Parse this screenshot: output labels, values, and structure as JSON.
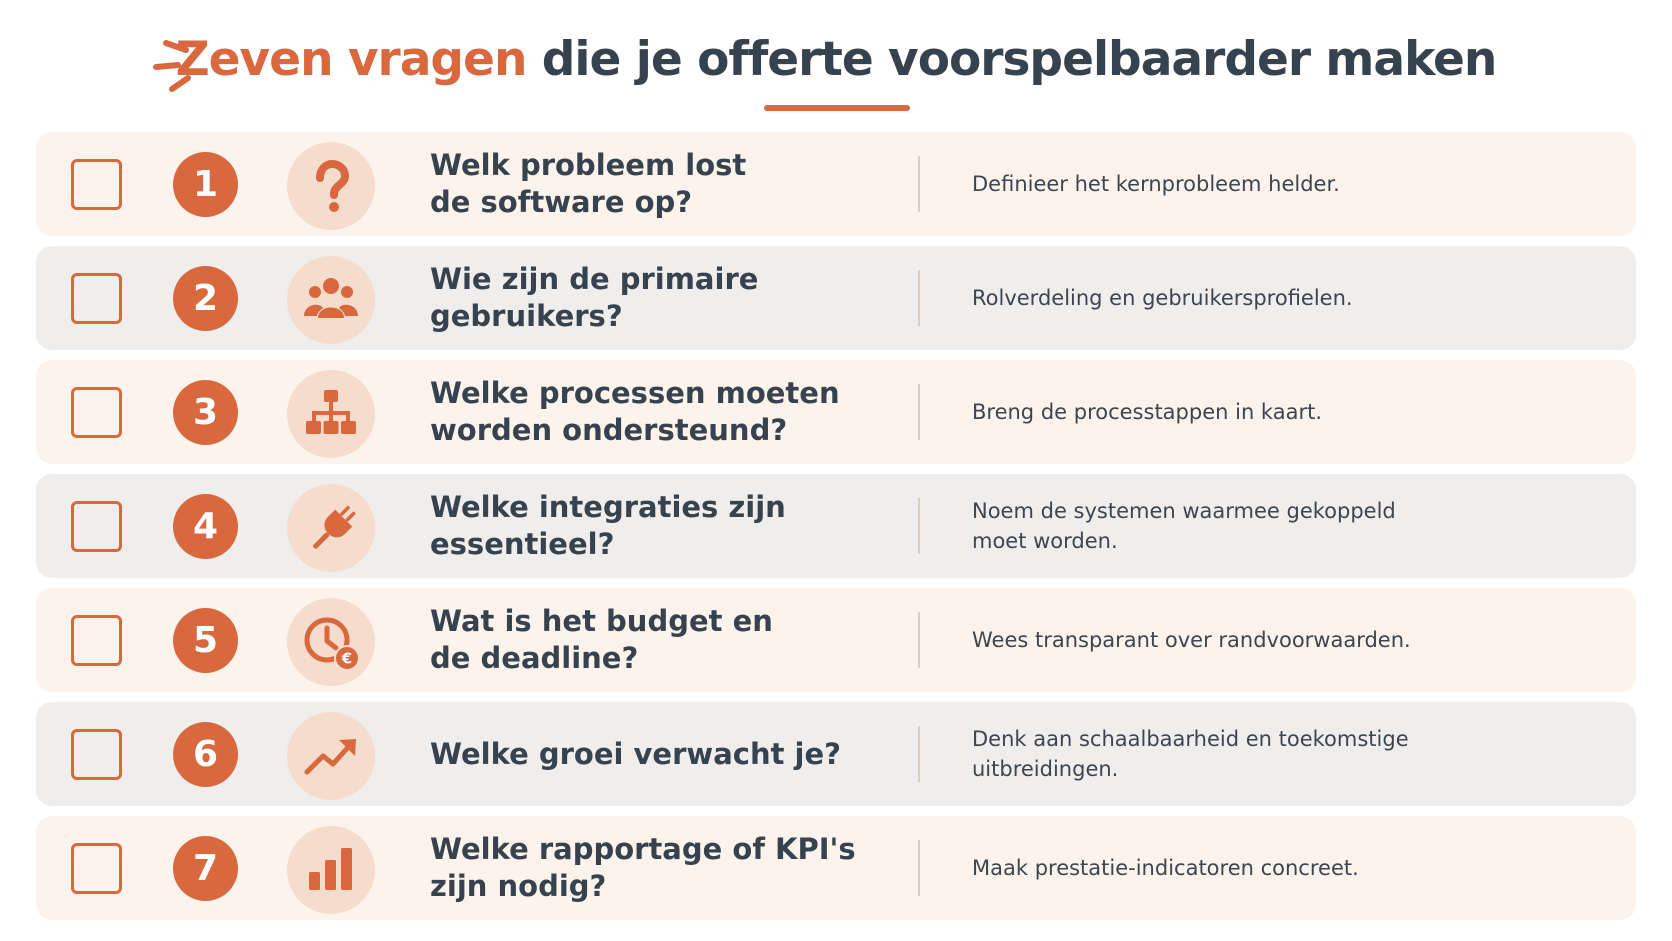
{
  "header": {
    "title_accent": "Zeven vragen",
    "title_rest": " die je offerte voorspelbaarder maken"
  },
  "colors": {
    "accent": "#d9683f",
    "dark_text": "#37424f",
    "row_light": "#fcf4ec",
    "row_gray": "#f0eeec",
    "icon_bg": "#f6dccc"
  },
  "questions": [
    {
      "number": "1",
      "icon": "question-mark-icon",
      "question": "Welk probleem lost\nde software op?",
      "description": "Definieer het kernprobleem helder.",
      "checked": false
    },
    {
      "number": "2",
      "icon": "users-icon",
      "question": "Wie zijn de primaire\ngebruikers?",
      "description": "Rolverdeling en gebruikersprofielen.",
      "checked": false
    },
    {
      "number": "3",
      "icon": "org-chart-icon",
      "question": "Welke processen moeten\nworden ondersteund?",
      "description": "Breng de processtappen in kaart.",
      "checked": false
    },
    {
      "number": "4",
      "icon": "plug-icon",
      "question": "Welke integraties zijn\nessentieel?",
      "description": "Noem de systemen waarmee gekoppeld\nmoet worden.",
      "checked": false
    },
    {
      "number": "5",
      "icon": "clock-euro-icon",
      "question": "Wat is het budget en\nde deadline?",
      "description": "Wees transparant over randvoorwaarden.",
      "checked": false
    },
    {
      "number": "6",
      "icon": "trend-up-icon",
      "question": "Welke groei verwacht je?",
      "description": "Denk aan schaalbaarheid en toekomstige\nuitbreidingen.",
      "checked": false
    },
    {
      "number": "7",
      "icon": "bar-chart-icon",
      "question": "Welke rapportage of KPI's\nzijn nodig?",
      "description": "Maak prestatie-indicatoren concreet.",
      "checked": false
    }
  ]
}
